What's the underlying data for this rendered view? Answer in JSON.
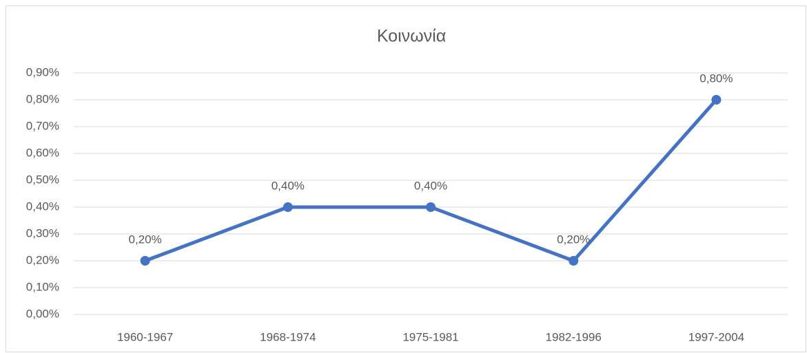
{
  "chart_data": {
    "type": "line",
    "title": "Κοινωνία",
    "categories": [
      "1960-1967",
      "1968-1974",
      "1975-1981",
      "1982-1996",
      "1997-2004"
    ],
    "series": [
      {
        "name": "Κοινωνία",
        "color": "#4472c4",
        "values": [
          0.2,
          0.4,
          0.4,
          0.2,
          0.8
        ],
        "value_labels": [
          "0,20%",
          "0,40%",
          "0,40%",
          "0,20%",
          "0,80%"
        ]
      }
    ],
    "ylim": [
      0,
      0.9
    ],
    "yticks": [
      {
        "value": 0,
        "label": "0,00%"
      },
      {
        "value": 0.1,
        "label": "0,10%"
      },
      {
        "value": 0.2,
        "label": "0,20%"
      },
      {
        "value": 0.3,
        "label": "0,30%"
      },
      {
        "value": 0.4,
        "label": "0,40%"
      },
      {
        "value": 0.5,
        "label": "0,50%"
      },
      {
        "value": 0.6,
        "label": "0,60%"
      },
      {
        "value": 0.7,
        "label": "0,70%"
      },
      {
        "value": 0.8,
        "label": "0,80%"
      },
      {
        "value": 0.9,
        "label": "0,90%"
      }
    ],
    "grid": true
  }
}
